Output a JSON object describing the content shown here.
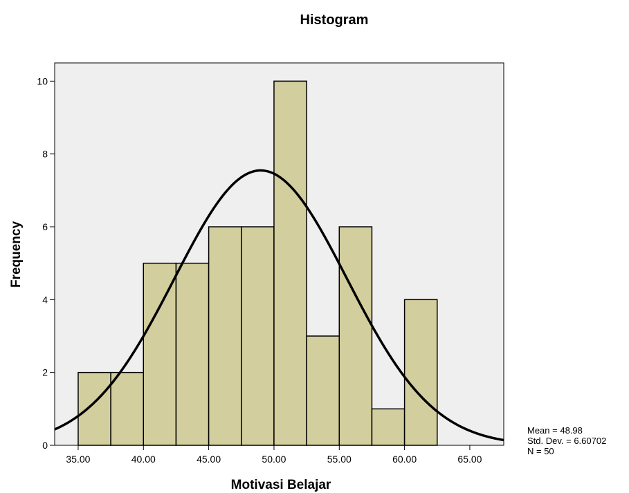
{
  "chart_data": {
    "type": "bar",
    "title": "Histogram",
    "xlabel": "Motivasi Belajar",
    "ylabel": "Frequency",
    "bin_width": 2.5,
    "bins": [
      {
        "start": 35.0,
        "end": 37.5,
        "count": 2
      },
      {
        "start": 37.5,
        "end": 40.0,
        "count": 2
      },
      {
        "start": 40.0,
        "end": 42.5,
        "count": 5
      },
      {
        "start": 42.5,
        "end": 45.0,
        "count": 5
      },
      {
        "start": 45.0,
        "end": 47.5,
        "count": 6
      },
      {
        "start": 47.5,
        "end": 50.0,
        "count": 6
      },
      {
        "start": 50.0,
        "end": 52.5,
        "count": 10
      },
      {
        "start": 52.5,
        "end": 55.0,
        "count": 3
      },
      {
        "start": 55.0,
        "end": 57.5,
        "count": 6
      },
      {
        "start": 57.5,
        "end": 60.0,
        "count": 1
      },
      {
        "start": 60.0,
        "end": 62.5,
        "count": 4
      }
    ],
    "xlim": [
      33.2,
      67.6
    ],
    "ylim": [
      0,
      10.5
    ],
    "x_ticks": [
      35,
      40,
      45,
      50,
      55,
      60,
      65
    ],
    "x_tick_labels": [
      "35.00",
      "40.00",
      "45.00",
      "50.00",
      "55.00",
      "60.00",
      "65.00"
    ],
    "y_ticks": [
      0,
      2,
      4,
      6,
      8,
      10
    ],
    "y_tick_labels": [
      "0",
      "2",
      "4",
      "6",
      "8",
      "10"
    ],
    "normal_curve": {
      "mean": 48.98,
      "std_dev": 6.60702,
      "n": 50
    },
    "stats": {
      "mean": "Mean = 48.98",
      "std_dev": "Std. Dev. = 6.60702",
      "n": "N = 50"
    },
    "colors": {
      "bar_fill": "#d3ce9d",
      "bar_stroke": "#000000",
      "plot_background": "#efefef",
      "curve": "#000000"
    },
    "grid": false
  }
}
